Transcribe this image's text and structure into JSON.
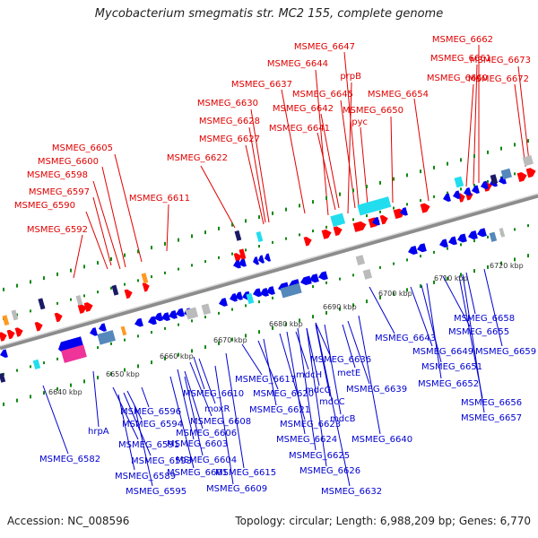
{
  "title": "Mycobacterium smegmatis str. MC2 155, complete genome",
  "footer": {
    "accession": "Accession: NC_008596",
    "summary": "Topology: circular; Length: 6,988,209 bp; Genes: 6,770"
  },
  "colors": {
    "forward_strand": "#ff0000",
    "reverse_strand": "#0000ee",
    "forward_label": "#e00000",
    "reverse_label": "#0000d0",
    "backbone": "#8c8c8c",
    "ruler_dots": "#118811",
    "cyan_feature": "#22ddee",
    "gray_feature": "#bbbbbb",
    "navy_feature": "#1a1a66",
    "magenta_feature": "#ee3399",
    "orange_feature": "#ff9922",
    "steelblue_feature": "#5588bb"
  },
  "ticks": [
    "6640 kbp",
    "6650 kbp",
    "6660 kbp",
    "6670 kbp",
    "6680 kbp",
    "6690 kbp",
    "6700 kbp",
    "6710 kbp",
    "6720 kbp"
  ],
  "top_labels": [
    "MSMEG_6592",
    "MSMEG_6590",
    "MSMEG_6597",
    "MSMEG_6598",
    "MSMEG_6600",
    "MSMEG_6605",
    "MSMEG_6611",
    "MSMEG_6622",
    "MSMEG_6627",
    "MSMEG_6628",
    "MSMEG_6630",
    "MSMEG_6637",
    "MSMEG_6641",
    "MSMEG_6642",
    "MSMEG_6644",
    "prpB",
    "MSMEG_6645",
    "MSMEG_6647",
    "MSMEG_6650",
    "pyc",
    "MSMEG_6654",
    "MSMEG_6660",
    "MSMEG_6661",
    "MSMEG_6662",
    "MSMEG_6672",
    "MSMEG_6673"
  ],
  "bottom_labels": [
    "MSMEG_6582",
    "hrpA",
    "MSMEG_6589",
    "MSMEG_6591",
    "MSMEG_6593",
    "MSMEG_6594",
    "MSMEG_6595",
    "MSMEG_6596",
    "MSMEG_6601",
    "MSMEG_6603",
    "MSMEG_6604",
    "MSMEG_6606",
    "MSMEG_6608",
    "moxR",
    "MSMEG_6609",
    "MSMEG_6610",
    "MSMEG_6615",
    "MSMEG_6617",
    "MSMEG_6620",
    "MSMEG_6621",
    "MSMEG_6623",
    "MSMEG_6624",
    "MSMEG_6625",
    "MSMEG_6626",
    "MSMEG_6632",
    "mdcH",
    "mdcG",
    "mdcC",
    "mdcB",
    "MSMEG_6636",
    "metE",
    "MSMEG_6639",
    "MSMEG_6640",
    "MSMEG_6643",
    "MSMEG_6649",
    "MSMEG_6651",
    "MSMEG_6652",
    "MSMEG_6655",
    "MSMEG_6656",
    "MSMEG_6657",
    "MSMEG_6658",
    "MSMEG_6659"
  ]
}
